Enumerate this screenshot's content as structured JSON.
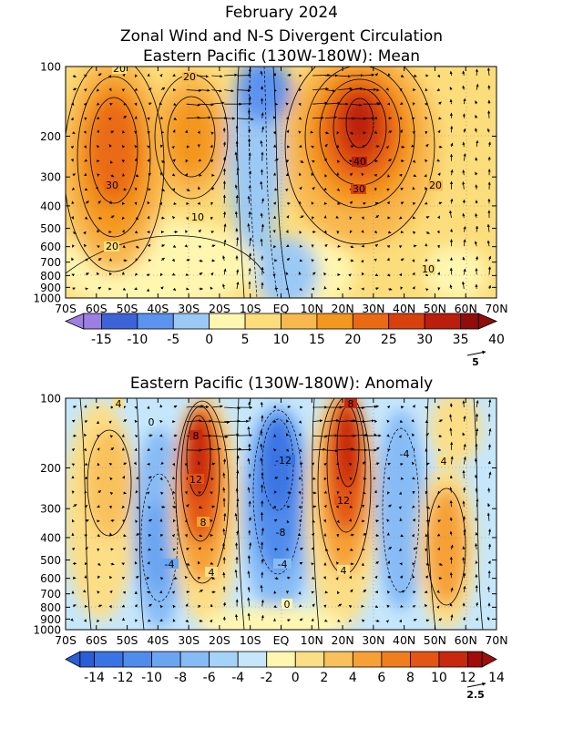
{
  "header": {
    "date": "February 2024",
    "title": "Zonal Wind and N-S Divergent Circulation"
  },
  "chart_data": [
    {
      "type": "heatmap",
      "title": "Eastern Pacific (130W-180W): Mean",
      "x_ticks": [
        "70S",
        "60S",
        "50S",
        "40S",
        "30S",
        "20S",
        "10S",
        "EQ",
        "10N",
        "20N",
        "30N",
        "40N",
        "50N",
        "60N",
        "70N"
      ],
      "y_ticks": [
        "100",
        "200",
        "300",
        "400",
        "500",
        "600",
        "700",
        "800",
        "900",
        "1000"
      ],
      "y_scale": "log-pressure",
      "ylim": [
        1000,
        100
      ],
      "grid": "dotted",
      "contour_labels": [
        "20",
        "20",
        "30",
        "20",
        "10",
        "40",
        "30",
        "20",
        "10"
      ],
      "colorbar": {
        "labels": [
          "-15",
          "-10",
          "-5",
          "0",
          "5",
          "10",
          "15",
          "20",
          "25",
          "30",
          "35",
          "40"
        ],
        "colors": [
          "#9c7fe0",
          "#3c64d8",
          "#5b93ef",
          "#9bc9f5",
          "#fff6b0",
          "#fcdd7b",
          "#f8b84e",
          "#f4971f",
          "#ea6a13",
          "#d8410d",
          "#bb1e0c",
          "#8f0d0a"
        ]
      },
      "vector_reference": "5"
    },
    {
      "type": "heatmap",
      "title": "Eastern Pacific (130W-180W): Anomaly",
      "x_ticks": [
        "70S",
        "60S",
        "50S",
        "40S",
        "30S",
        "20S",
        "10S",
        "EQ",
        "10N",
        "20N",
        "30N",
        "40N",
        "50N",
        "60N",
        "70N"
      ],
      "y_ticks": [
        "100",
        "200",
        "300",
        "400",
        "500",
        "600",
        "700",
        "800",
        "900",
        "1000"
      ],
      "y_scale": "log-pressure",
      "ylim": [
        1000,
        100
      ],
      "grid": "dotted",
      "contour_labels": [
        "4",
        "0",
        "8",
        "12",
        "8",
        "4",
        "-4",
        "-12",
        "-8",
        "-4",
        "0",
        "8",
        "12",
        "4",
        "-4",
        "4"
      ],
      "colorbar": {
        "labels": [
          "-14",
          "-12",
          "-10",
          "-8",
          "-6",
          "-4",
          "-2",
          "0",
          "2",
          "4",
          "6",
          "8",
          "10",
          "12",
          "14"
        ],
        "colors": [
          "#2a5ed6",
          "#3a74e4",
          "#4f8ced",
          "#6aa5f2",
          "#86bbf6",
          "#a5d2f8",
          "#c6e7fb",
          "#fff6b0",
          "#fcde86",
          "#f9c15c",
          "#f6a035",
          "#f07e1d",
          "#e35515",
          "#c8280e",
          "#a00d0a"
        ]
      },
      "vector_reference": "2.5"
    }
  ]
}
